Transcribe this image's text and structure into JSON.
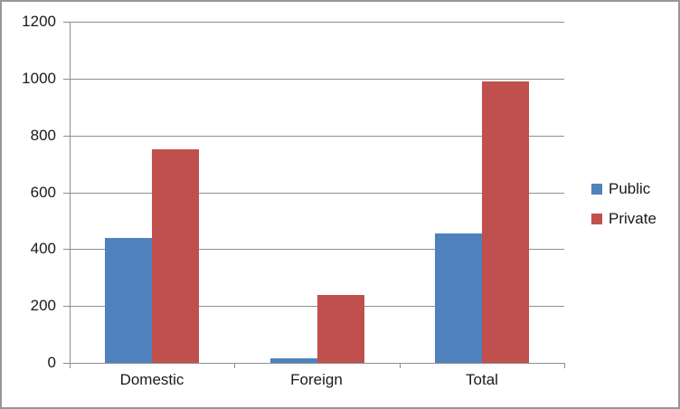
{
  "chart_data": {
    "type": "bar",
    "title": "",
    "categories": [
      "Domestic",
      "Foreign",
      "Total"
    ],
    "series": [
      {
        "name": "Public",
        "color": "#4F81BD",
        "values": [
          440,
          15,
          455
        ]
      },
      {
        "name": "Private",
        "color": "#C0504D",
        "values": [
          750,
          240,
          990
        ]
      }
    ],
    "xlabel": "",
    "ylabel": "",
    "ylim": [
      0,
      1200
    ],
    "ytick_step": 200,
    "ytick_labels": [
      "0",
      "200",
      "400",
      "600",
      "800",
      "1000",
      "1200"
    ],
    "grid": true,
    "legend_position": "right",
    "colors": {
      "gridline": "#8E8E8E",
      "axis": "#8E8E8E",
      "text": "#1a1a1a",
      "background": "#FFFFFF",
      "frame_border": "#969696"
    }
  }
}
